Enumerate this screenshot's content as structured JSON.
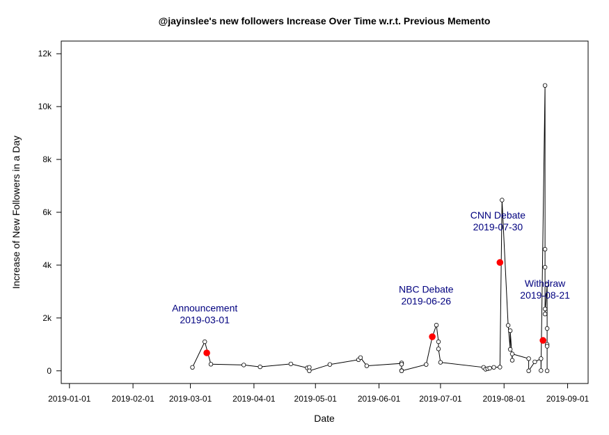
{
  "chart_data": {
    "type": "line",
    "title": "@jayinslee's new followers Increase Over Time w.r.t. Previous Memento",
    "xlabel": "Date",
    "ylabel": "Increase of New Followers in a Day",
    "x_ticks": [
      "2019-01-01",
      "2019-02-01",
      "2019-03-01",
      "2019-04-01",
      "2019-05-01",
      "2019-06-01",
      "2019-07-01",
      "2019-08-01",
      "2019-09-01"
    ],
    "y_ticks": [
      {
        "value": 0,
        "label": "0"
      },
      {
        "value": 2000,
        "label": "2k"
      },
      {
        "value": 4000,
        "label": "4k"
      },
      {
        "value": 6000,
        "label": "6k"
      },
      {
        "value": 8000,
        "label": "8k"
      },
      {
        "value": 10000,
        "label": "10k"
      },
      {
        "value": 12000,
        "label": "12k"
      }
    ],
    "xlim": [
      "2018-12-28",
      "2019-09-11"
    ],
    "ylim": [
      -480,
      12480
    ],
    "grid": false,
    "series": [
      {
        "points": [
          [
            "2019-03-02",
            130
          ],
          [
            "2019-03-08",
            1100
          ],
          [
            "2019-03-11",
            250
          ],
          [
            "2019-03-27",
            220
          ],
          [
            "2019-04-04",
            150
          ],
          [
            "2019-04-19",
            260
          ],
          [
            "2019-04-27",
            110
          ],
          [
            "2019-04-28",
            130
          ],
          [
            "2019-04-28",
            0
          ],
          [
            "2019-05-08",
            240
          ],
          [
            "2019-05-22",
            420
          ],
          [
            "2019-05-23",
            500
          ],
          [
            "2019-05-26",
            190
          ],
          [
            "2019-06-12",
            280
          ],
          [
            "2019-06-12",
            300
          ],
          [
            "2019-06-12",
            250
          ],
          [
            "2019-06-12",
            10
          ],
          [
            "2019-06-12",
            0
          ],
          [
            "2019-06-24",
            240
          ],
          [
            "2019-06-27",
            1280
          ],
          [
            "2019-06-29",
            1730
          ],
          [
            "2019-06-30",
            1100
          ],
          [
            "2019-06-30",
            830
          ],
          [
            "2019-07-01",
            320
          ],
          [
            "2019-07-22",
            130
          ],
          [
            "2019-07-23",
            60
          ],
          [
            "2019-07-24",
            80
          ],
          [
            "2019-07-25",
            100
          ],
          [
            "2019-07-27",
            130
          ],
          [
            "2019-07-30",
            140
          ],
          [
            "2019-07-31",
            6460
          ],
          [
            "2019-08-03",
            1720
          ],
          [
            "2019-08-04",
            810
          ],
          [
            "2019-08-04",
            1520
          ],
          [
            "2019-08-05",
            400
          ],
          [
            "2019-08-05",
            640
          ],
          [
            "2019-08-13",
            460
          ],
          [
            "2019-08-13",
            0
          ],
          [
            "2019-08-16",
            340
          ],
          [
            "2019-08-19",
            460
          ],
          [
            "2019-08-19",
            10
          ],
          [
            "2019-08-21",
            10800
          ],
          [
            "2019-08-21",
            4600
          ],
          [
            "2019-08-21",
            3920
          ],
          [
            "2019-08-21",
            2340
          ],
          [
            "2019-08-21",
            2150
          ],
          [
            "2019-08-22",
            3250
          ],
          [
            "2019-08-22",
            1600
          ],
          [
            "2019-08-22",
            1000
          ],
          [
            "2019-08-22",
            930
          ],
          [
            "2019-08-22",
            0
          ]
        ]
      }
    ],
    "events": [
      {
        "date": "2019-03-09",
        "value": 680,
        "label_line1": "Announcement",
        "label_line2": "2019-03-01",
        "label_date": "2019-03-08",
        "label_value": 1800
      },
      {
        "date": "2019-06-27",
        "value": 1290,
        "label_line1": "NBC Debate",
        "label_line2": "2019-06-26",
        "label_date": "2019-06-24",
        "label_value": 2510
      },
      {
        "date": "2019-07-30",
        "value": 4100,
        "label_line1": "CNN Debate",
        "label_line2": "2019-07-30",
        "label_date": "2019-07-29",
        "label_value": 5310
      },
      {
        "date": "2019-08-20",
        "value": 1150,
        "label_line1": "Withdraw",
        "label_line2": "2019-08-21",
        "label_date": "2019-08-21",
        "label_value": 2740
      }
    ],
    "colors": {
      "line": "#000000",
      "point": "#000000",
      "event_point": "#ff0000",
      "annotation": "#00007f"
    }
  }
}
